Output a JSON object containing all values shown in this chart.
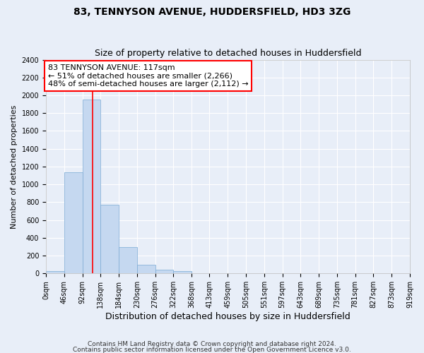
{
  "title1": "83, TENNYSON AVENUE, HUDDERSFIELD, HD3 3ZG",
  "title2": "Size of property relative to detached houses in Huddersfield",
  "xlabel": "Distribution of detached houses by size in Huddersfield",
  "ylabel": "Number of detached properties",
  "bin_edges": [
    0,
    46,
    92,
    138,
    184,
    230,
    276,
    322,
    368,
    413,
    459,
    505,
    551,
    597,
    643,
    689,
    735,
    781,
    827,
    873,
    919
  ],
  "bin_counts": [
    30,
    1135,
    1950,
    770,
    295,
    100,
    45,
    25,
    0,
    0,
    0,
    0,
    0,
    0,
    0,
    0,
    0,
    0,
    0,
    0
  ],
  "bar_color": "#c5d8f0",
  "bar_edgecolor": "#7aaad4",
  "vline_x": 117,
  "vline_color": "red",
  "annotation_text": "83 TENNYSON AVENUE: 117sqm\n← 51% of detached houses are smaller (2,266)\n48% of semi-detached houses are larger (2,112) →",
  "annotation_box_edgecolor": "red",
  "annotation_box_facecolor": "white",
  "ylim": [
    0,
    2400
  ],
  "yticks": [
    0,
    200,
    400,
    600,
    800,
    1000,
    1200,
    1400,
    1600,
    1800,
    2000,
    2200,
    2400
  ],
  "xtick_labels": [
    "0sqm",
    "46sqm",
    "92sqm",
    "138sqm",
    "184sqm",
    "230sqm",
    "276sqm",
    "322sqm",
    "368sqm",
    "413sqm",
    "459sqm",
    "505sqm",
    "551sqm",
    "597sqm",
    "643sqm",
    "689sqm",
    "735sqm",
    "781sqm",
    "827sqm",
    "873sqm",
    "919sqm"
  ],
  "footer1": "Contains HM Land Registry data © Crown copyright and database right 2024.",
  "footer2": "Contains public sector information licensed under the Open Government Licence v3.0.",
  "bg_color": "#e8eef8",
  "plot_bg_color": "#e8eef8",
  "grid_color": "#ffffff",
  "title1_fontsize": 10,
  "title2_fontsize": 9,
  "xlabel_fontsize": 9,
  "ylabel_fontsize": 8,
  "tick_fontsize": 7,
  "annotation_fontsize": 8,
  "footer_fontsize": 6.5
}
